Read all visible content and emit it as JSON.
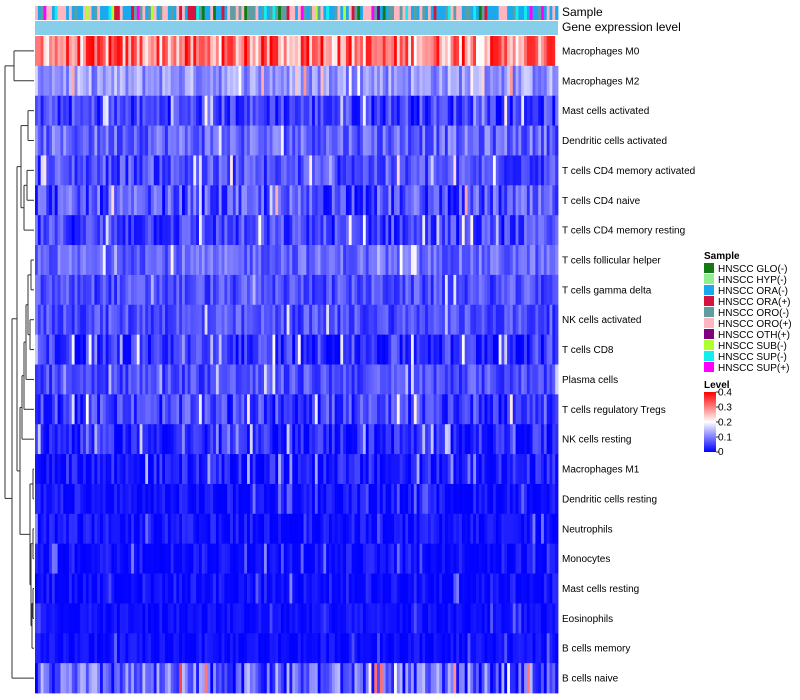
{
  "chart_data": {
    "type": "heatmap",
    "title": "",
    "n_samples": 185,
    "annotations": {
      "sample_label": "Sample",
      "level_label": "Gene expression level"
    },
    "rows": [
      {
        "label": "Macrophages M0",
        "mean": 0.3,
        "spread": 0.1
      },
      {
        "label": "Macrophages M2",
        "mean": 0.12,
        "spread": 0.05
      },
      {
        "label": "Mast cells activated",
        "mean": 0.05,
        "spread": 0.05
      },
      {
        "label": "Dendritic cells activated",
        "mean": 0.08,
        "spread": 0.05
      },
      {
        "label": "T cells CD4 memory activated",
        "mean": 0.06,
        "spread": 0.05
      },
      {
        "label": "T cells CD4 naive",
        "mean": 0.06,
        "spread": 0.06
      },
      {
        "label": "T cells CD4 memory resting",
        "mean": 0.05,
        "spread": 0.05
      },
      {
        "label": "T cells follicular helper",
        "mean": 0.08,
        "spread": 0.04
      },
      {
        "label": "T cells gamma delta",
        "mean": 0.06,
        "spread": 0.04
      },
      {
        "label": "NK cells activated",
        "mean": 0.06,
        "spread": 0.04
      },
      {
        "label": "T cells CD8",
        "mean": 0.04,
        "spread": 0.05
      },
      {
        "label": "Plasma cells",
        "mean": 0.06,
        "spread": 0.04
      },
      {
        "label": "T cells regulatory  Tregs",
        "mean": 0.05,
        "spread": 0.05
      },
      {
        "label": "NK cells resting",
        "mean": 0.03,
        "spread": 0.04
      },
      {
        "label": "Macrophages M1",
        "mean": 0.02,
        "spread": 0.04
      },
      {
        "label": "Dendritic cells resting",
        "mean": 0.01,
        "spread": 0.03
      },
      {
        "label": "Neutrophils",
        "mean": 0.01,
        "spread": 0.03
      },
      {
        "label": "Monocytes",
        "mean": 0.01,
        "spread": 0.03
      },
      {
        "label": "Mast cells resting",
        "mean": 0.01,
        "spread": 0.03
      },
      {
        "label": "Eosinophils",
        "mean": 0.01,
        "spread": 0.02
      },
      {
        "label": "B cells memory",
        "mean": 0.01,
        "spread": 0.02
      },
      {
        "label": "B cells naive",
        "mean": 0.07,
        "spread": 0.08
      }
    ],
    "sample_legend": {
      "title": "Sample",
      "entries": [
        {
          "label": "HNSCC GLO(-)",
          "color": "#137a13"
        },
        {
          "label": "HNSCC HYP(-)",
          "color": "#90ee90"
        },
        {
          "label": "HNSCC ORA(-)",
          "color": "#1aa9ee"
        },
        {
          "label": "HNSCC ORA(+)",
          "color": "#d4143c"
        },
        {
          "label": "HNSCC ORO(-)",
          "color": "#5f9ea0"
        },
        {
          "label": "HNSCC ORO(+)",
          "color": "#ffb6c1"
        },
        {
          "label": "HNSCC OTH(+)",
          "color": "#800080"
        },
        {
          "label": "HNSCC SUB(-)",
          "color": "#adff2f"
        },
        {
          "label": "HNSCC SUP(-)",
          "color": "#10eeee"
        },
        {
          "label": "HNSCC SUP(+)",
          "color": "#ff00ff"
        }
      ]
    },
    "level_legend": {
      "title": "Level",
      "ticks": [
        "0.4",
        "0.3",
        "0.2",
        "0.1",
        "0"
      ],
      "tick_values": [
        0.4,
        0.3,
        0.2,
        0.1,
        0
      ],
      "range": [
        0,
        0.4
      ],
      "colors": {
        "low": "#0000ff",
        "mid": "#ffffff",
        "high": "#ff0000",
        "mid_value": 0.2
      }
    },
    "level_annotation_color": "#87ceeb"
  }
}
